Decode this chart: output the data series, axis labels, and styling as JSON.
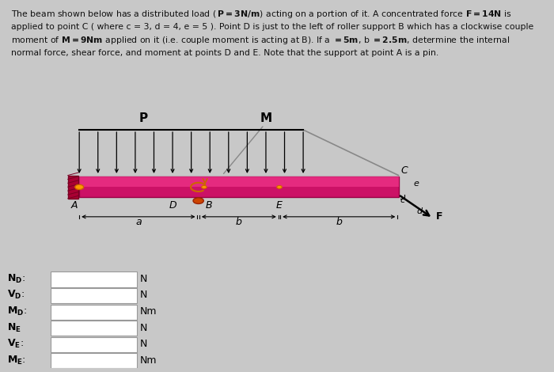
{
  "bg_color": "#cccccc",
  "diagram_bg": "#c8c8c8",
  "beam_color": "#cc1166",
  "beam_top_color": "#ee4499",
  "wall_color": "#aa0033",
  "title_lines": [
    "The beam shown below has a distributed load (",
    "applied to point C ( where c = 3, d = 4, e = 5 ). Point D is just to the left of roller support B which has a clockwise couple",
    "moment of ",
    "normal force, shear force, and moment at points D and E. Note that the support at point A is a pin."
  ],
  "input_labels": [
    "N_D",
    "V_D",
    "M_D",
    "N_E",
    "V_E",
    "M_E"
  ],
  "input_units": [
    "N",
    "N",
    "Nm",
    "N",
    "N",
    "Nm"
  ],
  "input_colon": [
    ":",
    ":",
    ":",
    "",
    ":",
    ":"
  ]
}
